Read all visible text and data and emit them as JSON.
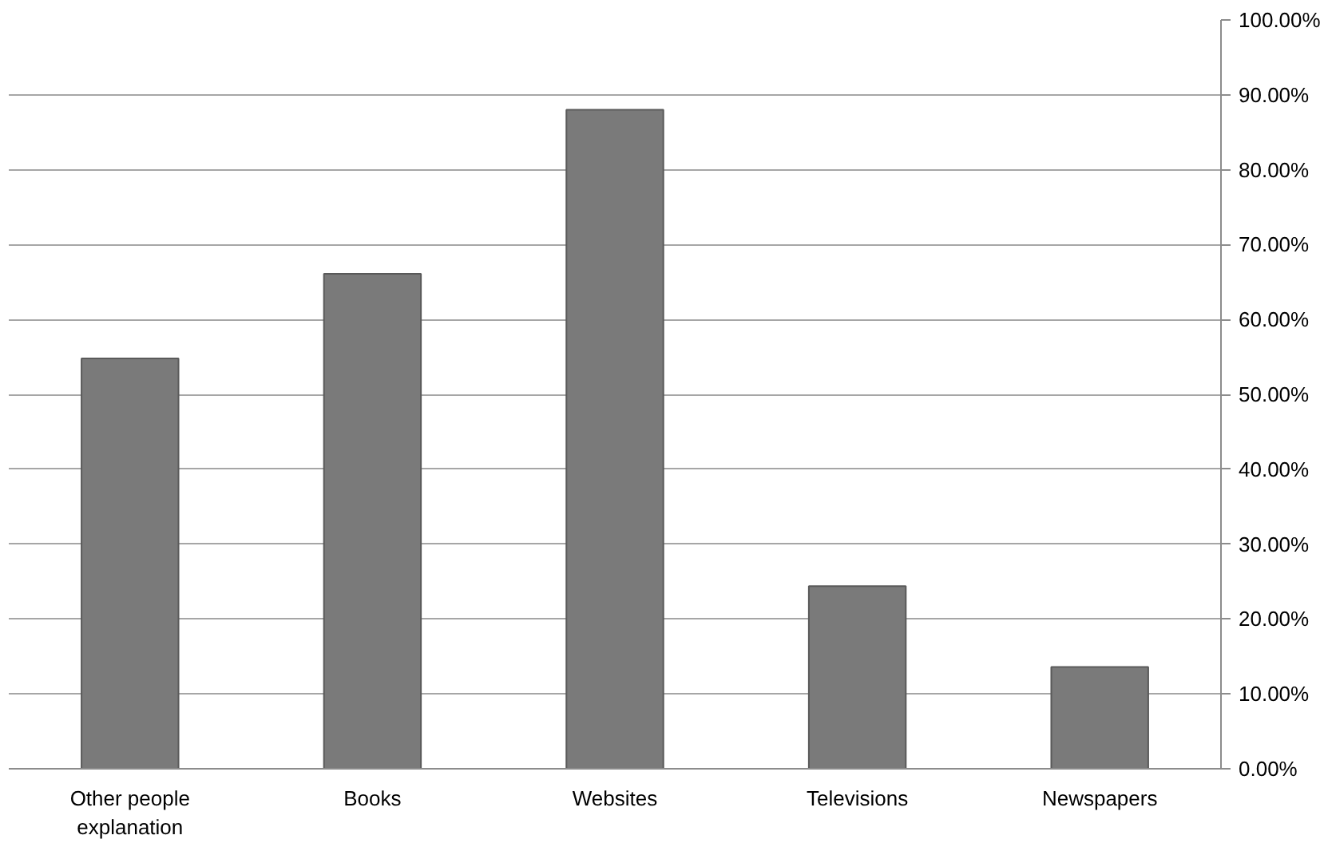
{
  "chart_data": {
    "type": "bar",
    "categories": [
      "Other people explanation",
      "Books",
      "Websites",
      "Televisions",
      "Newspapers"
    ],
    "values": [
      54.8,
      66.1,
      88.0,
      24.4,
      13.6
    ],
    "color": "#7a7a7a",
    "ylim": [
      0,
      100
    ],
    "yticks": [
      {
        "value": 0,
        "label": "0.00%"
      },
      {
        "value": 10,
        "label": "10.00%"
      },
      {
        "value": 20,
        "label": "20.00%"
      },
      {
        "value": 30,
        "label": "30.00%"
      },
      {
        "value": 40,
        "label": "40.00%"
      },
      {
        "value": 50,
        "label": "50.00%"
      },
      {
        "value": 60,
        "label": "60.00%"
      },
      {
        "value": 70,
        "label": "70.00%"
      },
      {
        "value": 80,
        "label": "80.00%"
      },
      {
        "value": 90,
        "label": "90.00%"
      },
      {
        "value": 100,
        "label": "100.00%"
      }
    ],
    "grid": "y"
  }
}
